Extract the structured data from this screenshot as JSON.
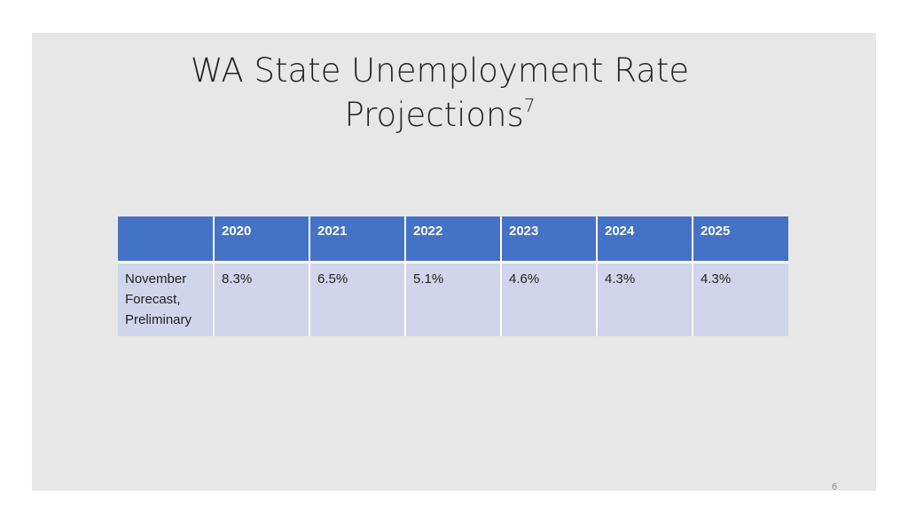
{
  "slide": {
    "title_line1": "WA State Unemployment Rate",
    "title_line2": "Projections",
    "title_footnote": "7",
    "page_number": "6"
  },
  "table": {
    "header_blank": "",
    "columns": [
      "2020",
      "2021",
      "2022",
      "2023",
      "2024",
      "2025"
    ],
    "rows": [
      {
        "label_lines": [
          "November",
          "Forecast,",
          "Preliminary"
        ],
        "values": [
          "8.3%",
          "6.5%",
          "5.1%",
          "4.6%",
          "4.3%",
          "4.3%"
        ]
      }
    ]
  },
  "colors": {
    "header_bg": "#4472c4",
    "row_bg": "#cfd5ea",
    "slide_bg": "#e7e7e7"
  }
}
